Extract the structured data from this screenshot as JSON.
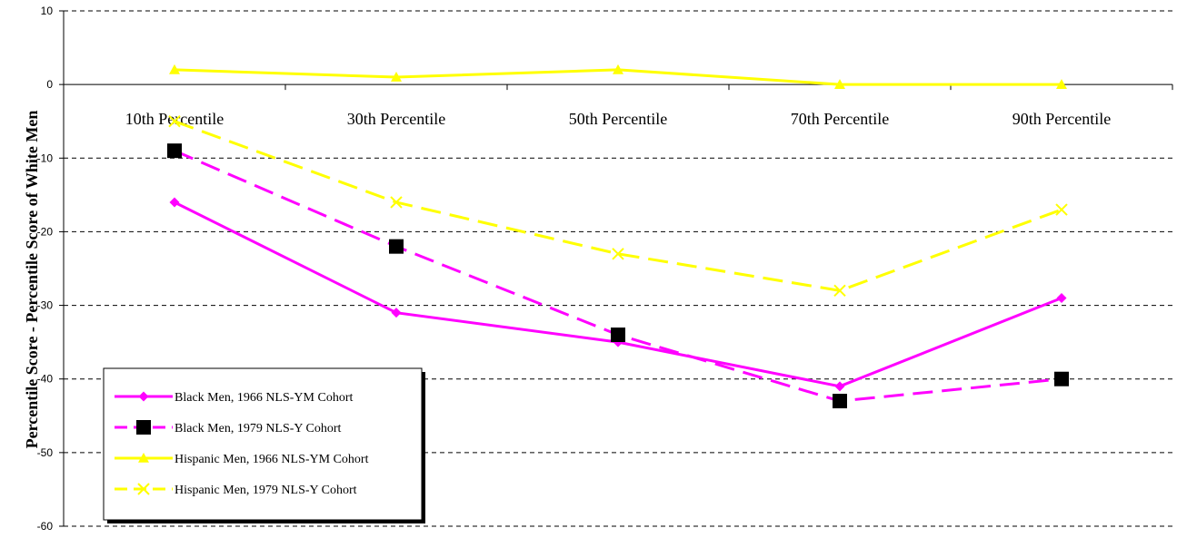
{
  "chart_data": {
    "type": "line",
    "title": "",
    "xlabel": "",
    "ylabel": "Percentile Score - Percentile Score of White Men",
    "ylim": [
      -60,
      10
    ],
    "yticks": [
      10,
      0,
      -10,
      -20,
      -30,
      -40,
      -50,
      -60
    ],
    "grid": true,
    "legend_position": "bottom-left",
    "categories": [
      "10th Percentile",
      "30th Percentile",
      "50th Percentile",
      "70th Percentile",
      "90th Percentile"
    ],
    "series": [
      {
        "name": "Black Men, 1966 NLS-YM Cohort",
        "values": [
          -16,
          -31,
          -35,
          -41,
          -29
        ],
        "color": "#ff00ff",
        "dash": "solid",
        "marker": "diamond"
      },
      {
        "name": "Black Men, 1979 NLS-Y Cohort",
        "values": [
          -9,
          -22,
          -34,
          -43,
          -40
        ],
        "color": "#ff00ff",
        "dash": "dashed",
        "marker": "square"
      },
      {
        "name": "Hispanic Men, 1966 NLS-YM Cohort",
        "values": [
          2,
          1,
          2,
          0,
          0
        ],
        "color": "#ffff00",
        "dash": "solid",
        "marker": "triangle"
      },
      {
        "name": "Hispanic Men, 1979 NLS-Y Cohort",
        "values": [
          -5,
          -16,
          -23,
          -28,
          -17
        ],
        "color": "#ffff00",
        "dash": "dashed",
        "marker": "x"
      }
    ]
  }
}
